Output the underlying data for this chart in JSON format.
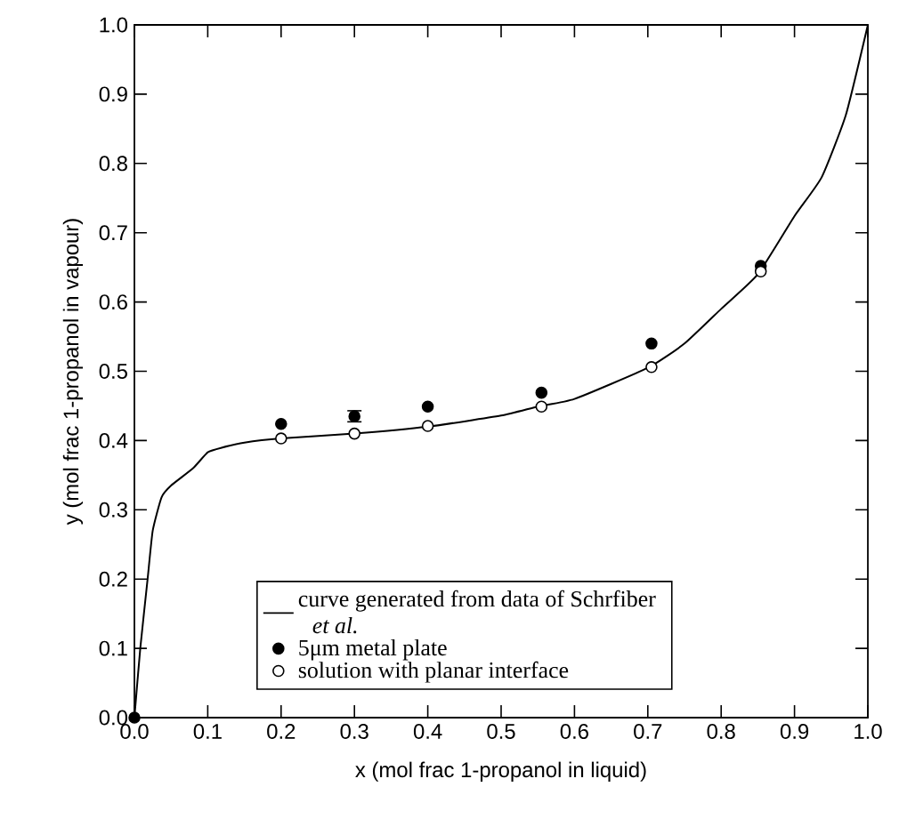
{
  "chart_data": {
    "type": "scatter",
    "xlabel": "x (mol frac 1-propanol in liquid)",
    "ylabel": "y (mol frac 1-propanol in vapour)",
    "xlim": [
      0,
      1
    ],
    "ylim": [
      0,
      1
    ],
    "xticks": [
      {
        "value": 0,
        "label": "0.0"
      },
      0.1,
      0.2,
      0.3,
      0.4,
      0.5,
      0.6,
      0.7,
      0.8,
      0.9,
      {
        "value": 1,
        "label": "1.0"
      }
    ],
    "yticks": [
      {
        "value": 0,
        "label": "0.0"
      },
      0.1,
      0.2,
      0.3,
      0.4,
      0.5,
      0.6,
      0.7,
      0.8,
      0.9,
      {
        "value": 1,
        "label": "1.0"
      }
    ],
    "grid": false,
    "legend": "bottom",
    "series": [
      {
        "name": "curve generated from data of Schrfiber *et al.*",
        "type": "line",
        "color": "#000000",
        "line_style": "solid",
        "marker": "none",
        "x": [
          0,
          0.008,
          0.018,
          0.025,
          0.037,
          0.05,
          0.08,
          0.1,
          0.12,
          0.15,
          0.2,
          0.3,
          0.4,
          0.5,
          0.55,
          0.6,
          0.7,
          0.75,
          0.8,
          0.85,
          0.9,
          0.937,
          0.97,
          1.0
        ],
        "values": [
          0,
          0.1,
          0.2,
          0.27,
          0.318,
          0.335,
          0.36,
          0.383,
          0.39,
          0.397,
          0.403,
          0.41,
          0.42,
          0.436,
          0.449,
          0.46,
          0.505,
          0.54,
          0.59,
          0.64,
          0.724,
          0.78,
          0.87,
          1.0
        ]
      },
      {
        "name": "5μm metal plate",
        "color": "#000000",
        "marker": "circle",
        "x": [
          0,
          0.2,
          0.3,
          0.4,
          0.555,
          0.705,
          0.854
        ],
        "values": [
          0,
          0.424,
          0.435,
          0.449,
          0.469,
          0.54,
          0.652
        ],
        "errors": [
          null,
          null,
          [
            0.426,
            0.444
          ],
          null,
          null,
          null,
          null
        ]
      },
      {
        "name": "solution with planar interface",
        "color": "#ffffff",
        "marker": "circle",
        "x": [
          0.2,
          0.3,
          0.4,
          0.555,
          0.705,
          0.854
        ],
        "values": [
          0.403,
          0.41,
          0.421,
          0.449,
          0.506,
          0.644
        ]
      }
    ]
  }
}
